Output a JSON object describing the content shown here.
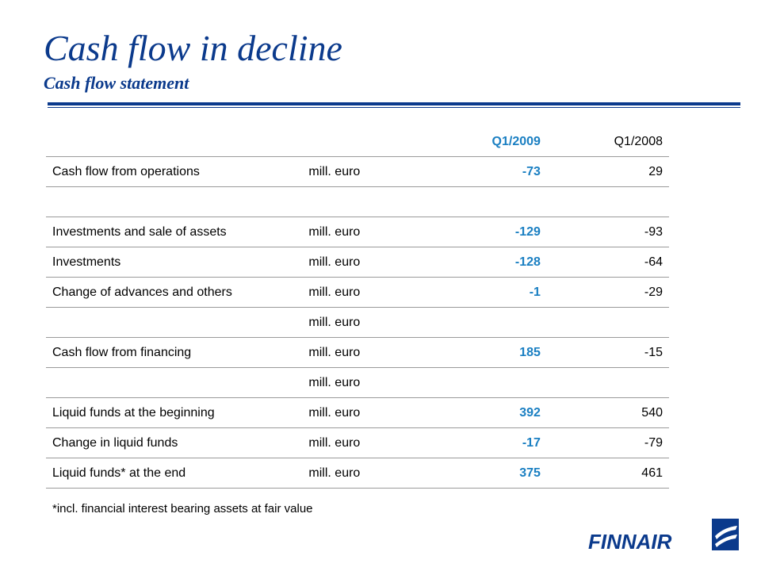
{
  "slide": {
    "title": "Cash flow in decline",
    "subtitle": "Cash flow statement"
  },
  "table": {
    "headers": [
      "",
      "",
      "Q1/2009",
      "Q1/2008"
    ],
    "rows": [
      {
        "label": "Cash flow from operations",
        "unit": "mill. euro",
        "q1_2009": "-73",
        "q1_2008": "29"
      },
      {
        "label": "",
        "unit": "",
        "q1_2009": "",
        "q1_2008": ""
      },
      {
        "label": "Investments and sale of assets",
        "unit": "mill. euro",
        "q1_2009": "-129",
        "q1_2008": "-93"
      },
      {
        "label": "Investments",
        "unit": "mill. euro",
        "q1_2009": "-128",
        "q1_2008": "-64"
      },
      {
        "label": "Change of advances and others",
        "unit": "mill. euro",
        "q1_2009": "-1",
        "q1_2008": "-29"
      },
      {
        "label": "",
        "unit": "mill. euro",
        "q1_2009": "",
        "q1_2008": ""
      },
      {
        "label": "Cash flow from financing",
        "unit": "mill. euro",
        "q1_2009": "185",
        "q1_2008": "-15"
      },
      {
        "label": "",
        "unit": "mill. euro",
        "q1_2009": "",
        "q1_2008": ""
      },
      {
        "label": "Liquid funds at the beginning",
        "unit": "mill. euro",
        "q1_2009": "392",
        "q1_2008": "540"
      },
      {
        "label": "Change in liquid funds",
        "unit": "mill. euro",
        "q1_2009": "-17",
        "q1_2008": "-79"
      },
      {
        "label": "Liquid funds* at the end",
        "unit": "mill. euro",
        "q1_2009": "375",
        "q1_2008": "461"
      }
    ]
  },
  "footnote": "*incl. financial interest bearing assets at fair value",
  "logo": {
    "text": "FINNAIR",
    "icon": "finnair-f-logo-icon"
  },
  "colors": {
    "title": "#0b3a8c",
    "highlight": "#1a7fc2",
    "rule": "#0b3a8c"
  }
}
